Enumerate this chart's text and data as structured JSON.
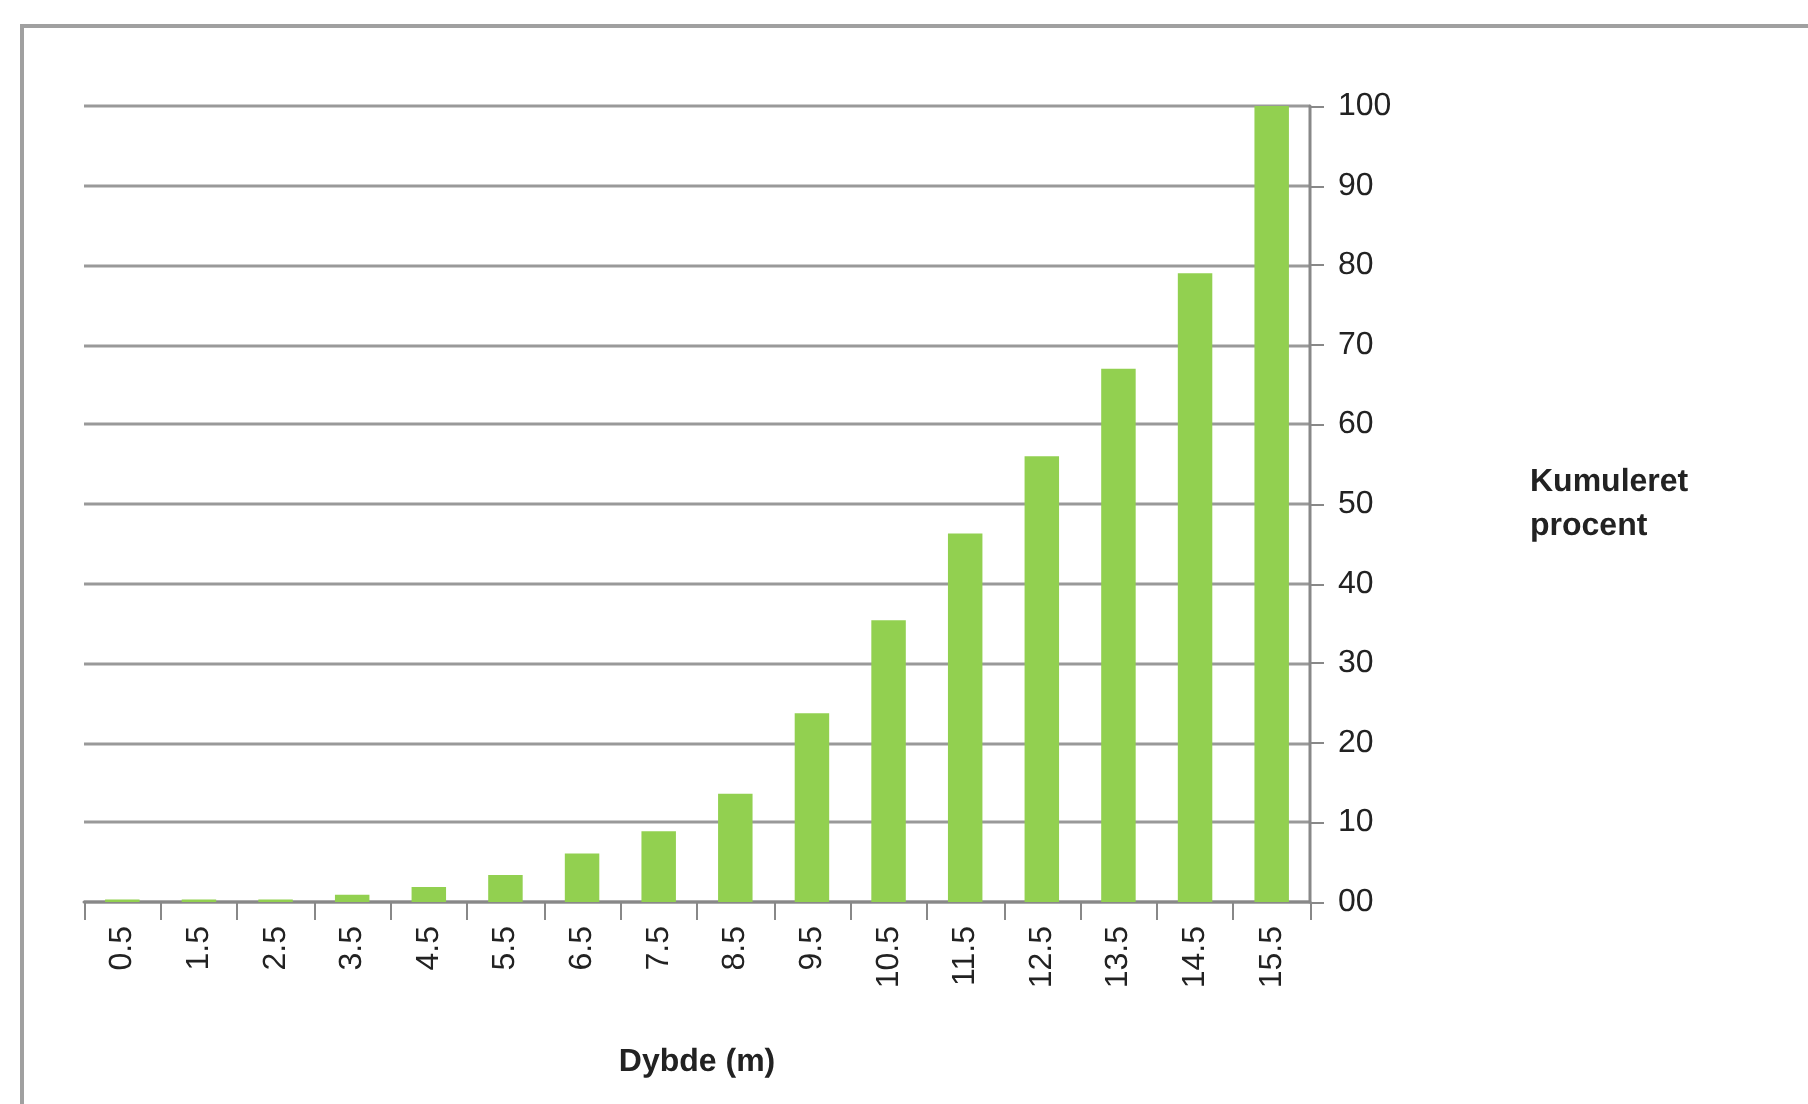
{
  "chart_data": {
    "type": "bar",
    "xlabel": "Dybde (m)",
    "ylabel": "Kumuleret procent",
    "categories": [
      "0.5",
      "1.5",
      "2.5",
      "3.5",
      "4.5",
      "5.5",
      "6.5",
      "7.5",
      "8.5",
      "9.5",
      "10.5",
      "11.5",
      "12.5",
      "13.5",
      "14.5",
      "15.5"
    ],
    "values": [
      0.3,
      0.3,
      0.3,
      0.9,
      1.9,
      3.4,
      6.1,
      8.9,
      13.6,
      23.7,
      35.4,
      46.3,
      56.0,
      67.0,
      79.0,
      100
    ],
    "color": "#92d050",
    "ylim": [
      0,
      100
    ],
    "yticks": [
      {
        "value": 0,
        "label": "00"
      },
      10,
      20,
      30,
      40,
      50,
      60,
      70,
      80,
      90,
      100
    ],
    "grid": "y"
  }
}
